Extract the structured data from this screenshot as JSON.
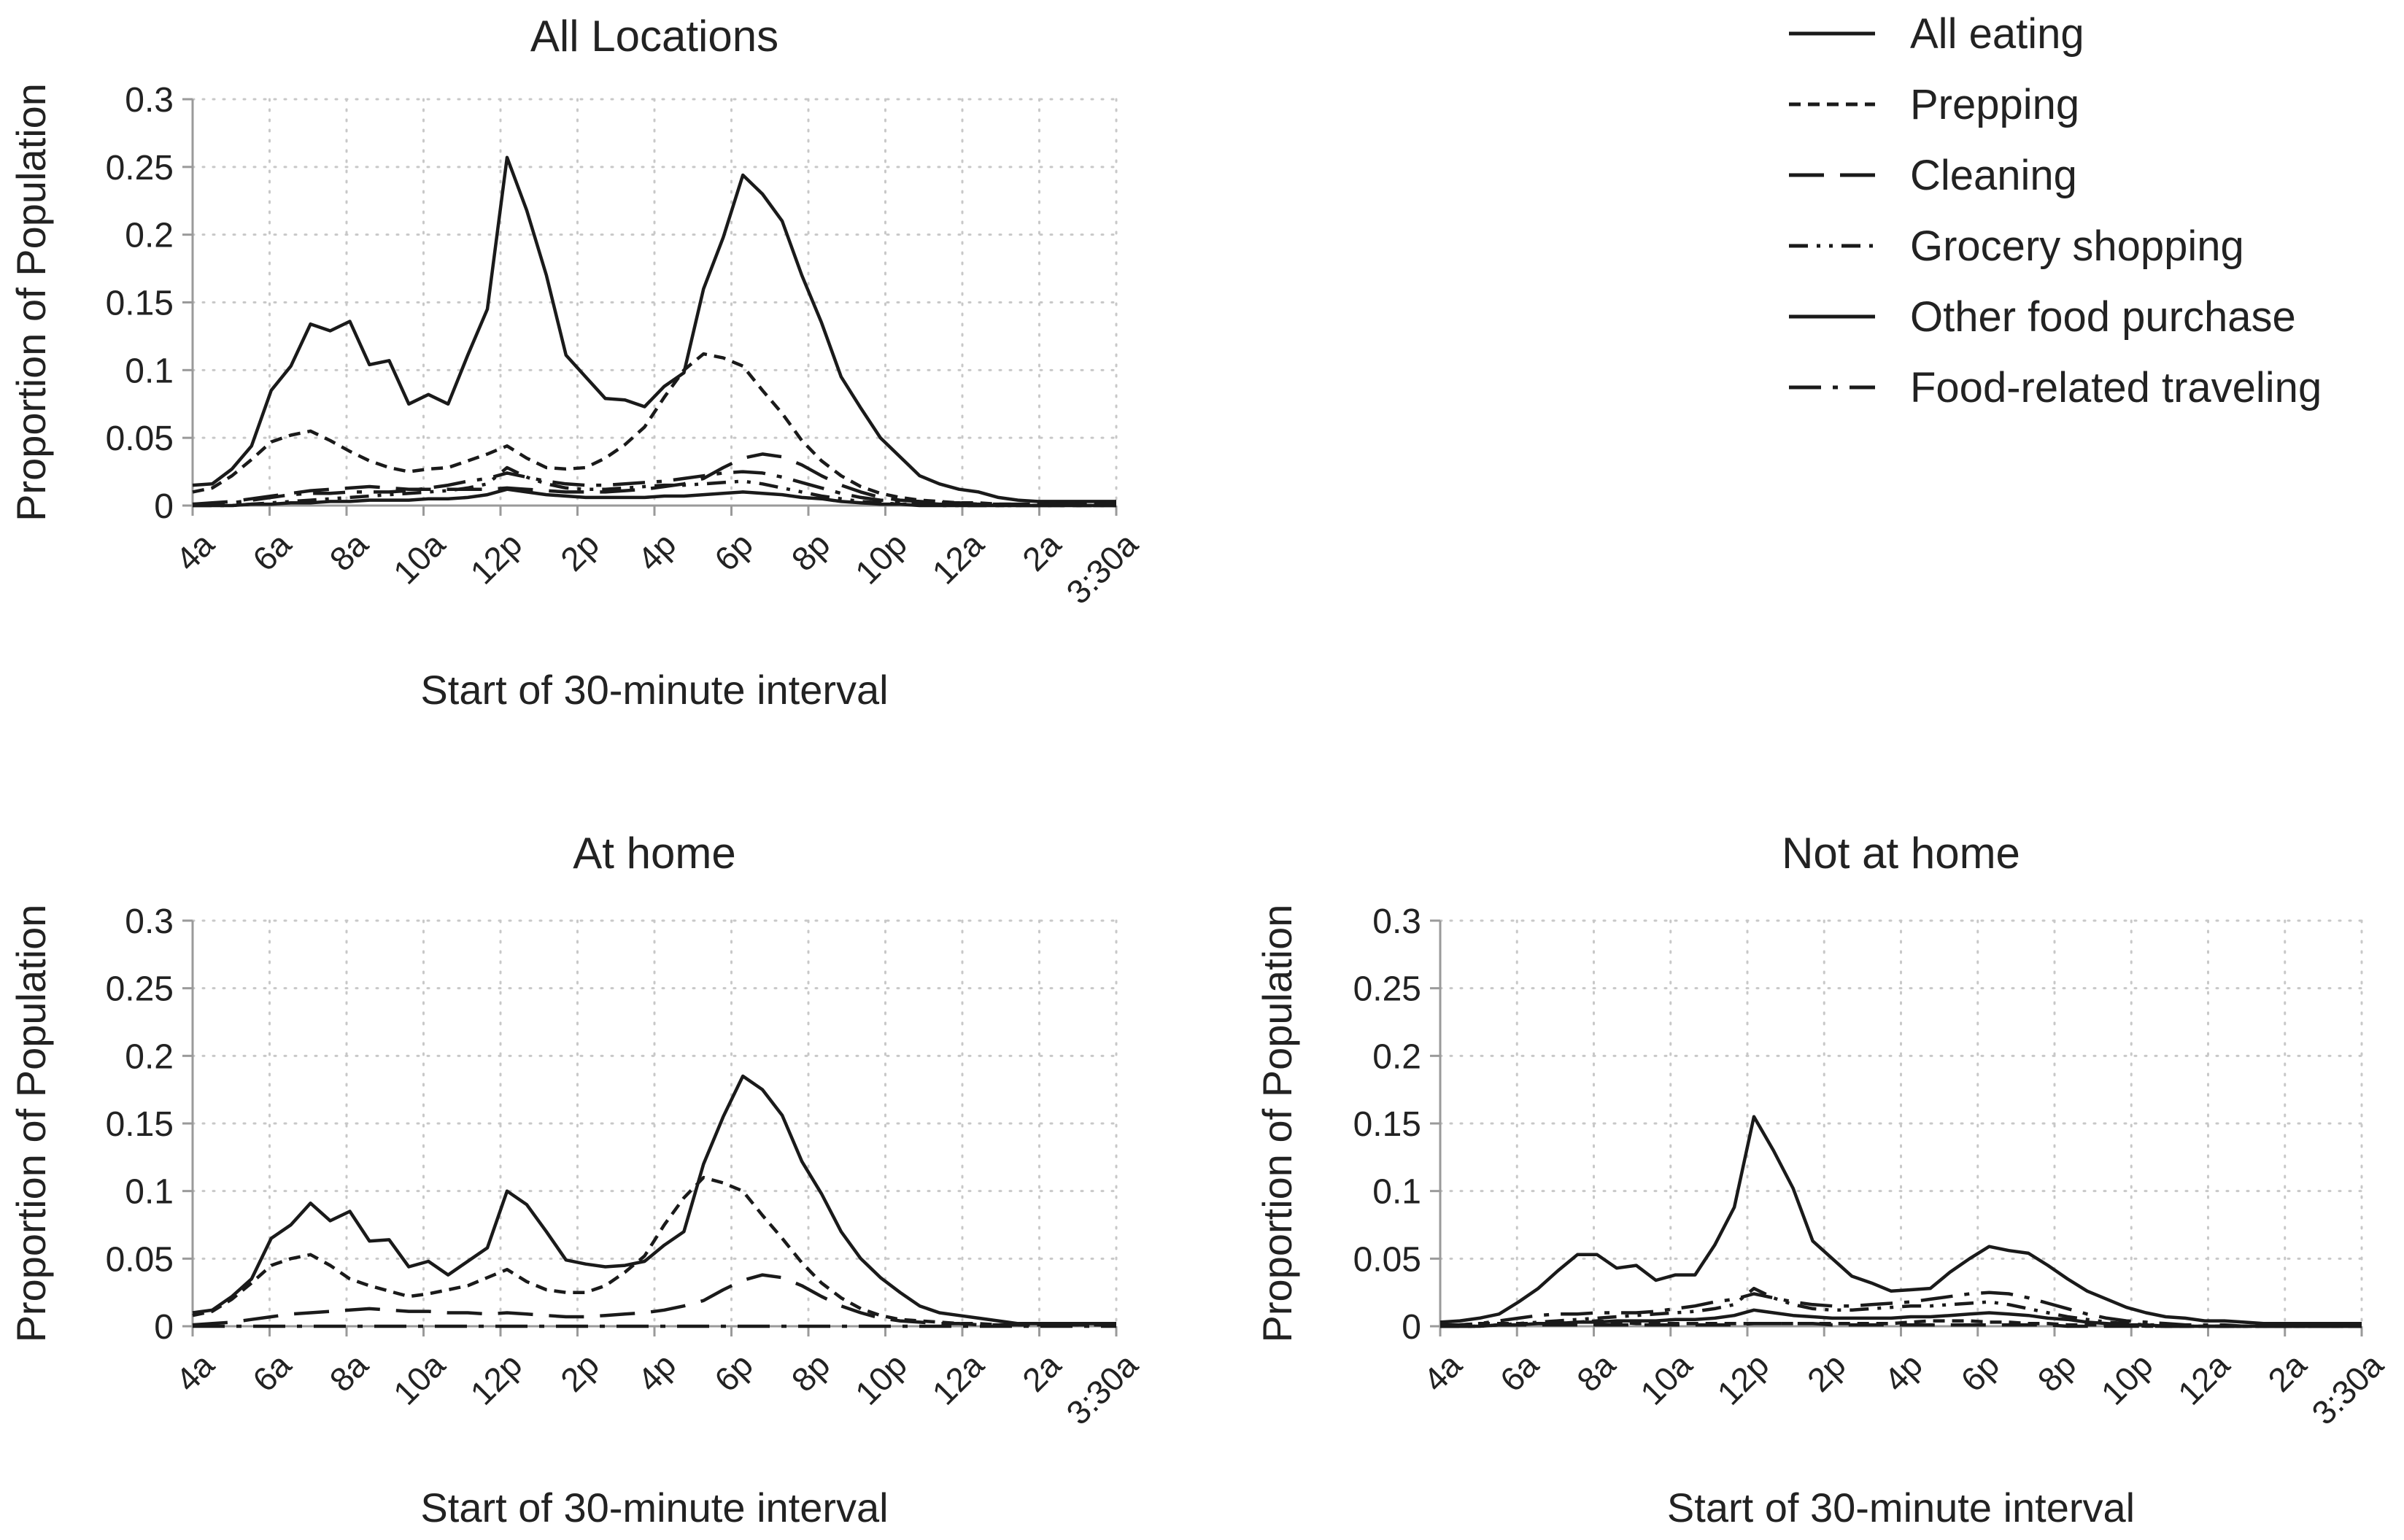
{
  "legend": {
    "placement": "top-right",
    "items": [
      {
        "label": "All eating",
        "style": "solid"
      },
      {
        "label": "Prepping",
        "style": "short-dash"
      },
      {
        "label": "Cleaning",
        "style": "long-dash"
      },
      {
        "label": "Grocery shopping",
        "style": "dash-dot-dot"
      },
      {
        "label": "Other food purchase",
        "style": "solid"
      },
      {
        "label": "Food-related traveling",
        "style": "long-dash-dot"
      }
    ]
  },
  "colors": {
    "line": "#1a1a1a",
    "grid": "#c8c8c8",
    "axis": "#9a9a9a",
    "text": "#222222"
  },
  "axes": {
    "xlabel": "Start of 30-minute interval",
    "ylabel": "Proportion of Population",
    "x_ticks": [
      "4a",
      "6a",
      "8a",
      "10a",
      "12p",
      "2p",
      "4p",
      "6p",
      "8p",
      "10p",
      "12a",
      "2a",
      "3:30a"
    ],
    "y_ticks": [
      "0",
      "0.05",
      "0.1",
      "0.15",
      "0.2",
      "0.25",
      "0.3"
    ],
    "ylim": [
      0,
      0.3
    ],
    "grid": true
  },
  "chart_data": [
    {
      "type": "line",
      "title": "All Locations",
      "xlabel": "Start of 30-minute interval",
      "ylabel": "Proportion of Population",
      "ylim": [
        0,
        0.3
      ],
      "x_ticks": [
        "4a",
        "6a",
        "8a",
        "10a",
        "12p",
        "2p",
        "4p",
        "6p",
        "8p",
        "10p",
        "12a",
        "2a",
        "3:30a"
      ],
      "y_ticks": [
        "0",
        "0.05",
        "0.1",
        "0.15",
        "0.2",
        "0.25",
        "0.3"
      ],
      "series": [
        {
          "name": "All eating",
          "style": "solid",
          "values": [
            0.015,
            0.016,
            0.027,
            0.044,
            0.085,
            0.103,
            0.134,
            0.129,
            0.136,
            0.104,
            0.107,
            0.075,
            0.082,
            0.075,
            0.111,
            0.145,
            0.257,
            0.218,
            0.17,
            0.111,
            0.095,
            0.079,
            0.078,
            0.073,
            0.088,
            0.098,
            0.16,
            0.198,
            0.244,
            0.23,
            0.21,
            0.17,
            0.135,
            0.095,
            0.072,
            0.05,
            0.036,
            0.022,
            0.016,
            0.012,
            0.01,
            0.006,
            0.004,
            0.003,
            0.003,
            0.003,
            0.003,
            0.003
          ]
        },
        {
          "name": "Prepping",
          "style": "short-dash",
          "values": [
            0.01,
            0.013,
            0.022,
            0.034,
            0.047,
            0.052,
            0.055,
            0.048,
            0.04,
            0.033,
            0.028,
            0.025,
            0.027,
            0.028,
            0.033,
            0.038,
            0.044,
            0.035,
            0.028,
            0.027,
            0.028,
            0.035,
            0.045,
            0.058,
            0.08,
            0.1,
            0.112,
            0.109,
            0.103,
            0.085,
            0.068,
            0.048,
            0.033,
            0.022,
            0.014,
            0.009,
            0.006,
            0.004,
            0.003,
            0.002,
            0.002,
            0.001,
            0.001,
            0.001,
            0.001,
            0.001,
            0.001,
            0.001
          ]
        },
        {
          "name": "Cleaning",
          "style": "long-dash",
          "values": [
            0.001,
            0.002,
            0.003,
            0.005,
            0.007,
            0.009,
            0.011,
            0.012,
            0.013,
            0.014,
            0.013,
            0.012,
            0.012,
            0.012,
            0.012,
            0.012,
            0.013,
            0.012,
            0.011,
            0.01,
            0.01,
            0.01,
            0.011,
            0.012,
            0.014,
            0.016,
            0.02,
            0.028,
            0.035,
            0.038,
            0.036,
            0.03,
            0.022,
            0.015,
            0.01,
            0.006,
            0.004,
            0.003,
            0.002,
            0.002,
            0.001,
            0.001,
            0.001,
            0.001,
            0.001,
            0.001,
            0.001,
            0.001
          ]
        },
        {
          "name": "Grocery shopping",
          "style": "dash-dot-dot",
          "values": [
            0,
            0,
            0,
            0.001,
            0.002,
            0.003,
            0.004,
            0.005,
            0.006,
            0.007,
            0.008,
            0.009,
            0.01,
            0.011,
            0.013,
            0.016,
            0.028,
            0.021,
            0.016,
            0.013,
            0.012,
            0.012,
            0.013,
            0.014,
            0.015,
            0.015,
            0.016,
            0.017,
            0.018,
            0.016,
            0.013,
            0.01,
            0.007,
            0.005,
            0.003,
            0.002,
            0.001,
            0.001,
            0,
            0,
            0,
            0,
            0,
            0,
            0,
            0,
            0,
            0
          ]
        },
        {
          "name": "Other food purchase",
          "style": "solid",
          "values": [
            0,
            0,
            0,
            0.001,
            0.001,
            0.002,
            0.002,
            0.003,
            0.003,
            0.004,
            0.004,
            0.004,
            0.005,
            0.005,
            0.006,
            0.008,
            0.012,
            0.01,
            0.008,
            0.007,
            0.006,
            0.006,
            0.006,
            0.006,
            0.007,
            0.007,
            0.008,
            0.009,
            0.01,
            0.009,
            0.008,
            0.006,
            0.005,
            0.003,
            0.002,
            0.001,
            0.001,
            0,
            0,
            0,
            0,
            0,
            0,
            0,
            0,
            0,
            0,
            0
          ]
        },
        {
          "name": "Food-related traveling",
          "style": "long-dash-dot",
          "values": [
            0.001,
            0.001,
            0.002,
            0.004,
            0.006,
            0.008,
            0.009,
            0.009,
            0.01,
            0.01,
            0.01,
            0.011,
            0.013,
            0.015,
            0.018,
            0.02,
            0.024,
            0.021,
            0.018,
            0.016,
            0.015,
            0.015,
            0.016,
            0.017,
            0.018,
            0.02,
            0.022,
            0.024,
            0.025,
            0.024,
            0.021,
            0.017,
            0.013,
            0.009,
            0.006,
            0.004,
            0.003,
            0.002,
            0.001,
            0.001,
            0.001,
            0,
            0,
            0,
            0,
            0,
            0,
            0
          ]
        }
      ]
    },
    {
      "type": "line",
      "title": "At home",
      "xlabel": "Start of 30-minute interval",
      "ylabel": "Proportion of Population",
      "ylim": [
        0,
        0.3
      ],
      "x_ticks": [
        "4a",
        "6a",
        "8a",
        "10a",
        "12p",
        "2p",
        "4p",
        "6p",
        "8p",
        "10p",
        "12a",
        "2a",
        "3:30a"
      ],
      "y_ticks": [
        "0",
        "0.05",
        "0.1",
        "0.15",
        "0.2",
        "0.25",
        "0.3"
      ],
      "series": [
        {
          "name": "All eating",
          "style": "solid",
          "values": [
            0.01,
            0.012,
            0.022,
            0.035,
            0.065,
            0.075,
            0.091,
            0.078,
            0.085,
            0.063,
            0.064,
            0.044,
            0.048,
            0.038,
            0.048,
            0.058,
            0.1,
            0.09,
            0.07,
            0.049,
            0.046,
            0.044,
            0.045,
            0.048,
            0.06,
            0.07,
            0.12,
            0.155,
            0.185,
            0.175,
            0.156,
            0.122,
            0.098,
            0.07,
            0.05,
            0.036,
            0.025,
            0.015,
            0.01,
            0.008,
            0.006,
            0.004,
            0.002,
            0.002,
            0.002,
            0.002,
            0.002,
            0.002
          ]
        },
        {
          "name": "Prepping",
          "style": "short-dash",
          "values": [
            0.008,
            0.011,
            0.02,
            0.032,
            0.045,
            0.05,
            0.053,
            0.045,
            0.035,
            0.03,
            0.026,
            0.022,
            0.024,
            0.027,
            0.03,
            0.036,
            0.042,
            0.033,
            0.027,
            0.025,
            0.025,
            0.03,
            0.04,
            0.052,
            0.075,
            0.095,
            0.11,
            0.106,
            0.1,
            0.082,
            0.065,
            0.047,
            0.032,
            0.021,
            0.013,
            0.008,
            0.005,
            0.004,
            0.003,
            0.002,
            0.002,
            0.001,
            0.001,
            0.001,
            0.001,
            0.001,
            0.001,
            0.001
          ]
        },
        {
          "name": "Cleaning",
          "style": "long-dash",
          "values": [
            0.001,
            0.002,
            0.003,
            0.005,
            0.007,
            0.009,
            0.01,
            0.011,
            0.012,
            0.013,
            0.012,
            0.011,
            0.011,
            0.01,
            0.01,
            0.009,
            0.01,
            0.009,
            0.008,
            0.007,
            0.007,
            0.008,
            0.009,
            0.01,
            0.012,
            0.015,
            0.019,
            0.027,
            0.034,
            0.038,
            0.036,
            0.03,
            0.022,
            0.015,
            0.01,
            0.006,
            0.004,
            0.003,
            0.002,
            0.002,
            0.001,
            0.001,
            0.001,
            0.001,
            0.001,
            0.001,
            0.001,
            0.001
          ]
        },
        {
          "name": "Food-related traveling",
          "style": "long-dash-dot",
          "values": [
            0,
            0,
            0,
            0,
            0,
            0,
            0,
            0,
            0,
            0,
            0,
            0,
            0,
            0,
            0,
            0,
            0,
            0,
            0,
            0,
            0,
            0,
            0,
            0,
            0,
            0,
            0,
            0,
            0,
            0,
            0,
            0,
            0,
            0,
            0,
            0,
            0,
            0,
            0,
            0,
            0,
            0,
            0,
            0,
            0,
            0,
            0,
            0
          ]
        }
      ]
    },
    {
      "type": "line",
      "title": "Not at home",
      "xlabel": "Start of 30-minute interval",
      "ylabel": "Proportion of Population",
      "ylim": [
        0,
        0.3
      ],
      "x_ticks": [
        "4a",
        "6a",
        "8a",
        "10a",
        "12p",
        "2p",
        "4p",
        "6p",
        "8p",
        "10p",
        "12a",
        "2a",
        "3:30a"
      ],
      "y_ticks": [
        "0",
        "0.05",
        "0.1",
        "0.15",
        "0.2",
        "0.25",
        "0.3"
      ],
      "series": [
        {
          "name": "All eating",
          "style": "solid",
          "values": [
            0.003,
            0.004,
            0.006,
            0.009,
            0.018,
            0.028,
            0.041,
            0.053,
            0.053,
            0.043,
            0.045,
            0.034,
            0.038,
            0.038,
            0.06,
            0.088,
            0.155,
            0.13,
            0.102,
            0.063,
            0.05,
            0.037,
            0.032,
            0.026,
            0.027,
            0.028,
            0.04,
            0.05,
            0.059,
            0.056,
            0.054,
            0.045,
            0.035,
            0.026,
            0.02,
            0.014,
            0.01,
            0.007,
            0.006,
            0.004,
            0.004,
            0.003,
            0.002,
            0.002,
            0.002,
            0.002,
            0.002,
            0.002
          ]
        },
        {
          "name": "Prepping",
          "style": "short-dash",
          "values": [
            0.001,
            0.001,
            0.002,
            0.002,
            0.002,
            0.002,
            0.002,
            0.003,
            0.004,
            0.003,
            0.002,
            0.002,
            0.002,
            0.002,
            0.002,
            0.002,
            0.002,
            0.002,
            0.002,
            0.002,
            0.002,
            0.002,
            0.002,
            0.002,
            0.003,
            0.004,
            0.004,
            0.004,
            0.003,
            0.003,
            0.002,
            0.002,
            0.001,
            0.001,
            0.001,
            0.001,
            0,
            0,
            0,
            0,
            0,
            0,
            0,
            0,
            0,
            0,
            0,
            0
          ]
        },
        {
          "name": "Cleaning",
          "style": "long-dash",
          "values": [
            0,
            0,
            0,
            0.001,
            0.001,
            0.001,
            0.001,
            0.001,
            0.001,
            0.001,
            0.001,
            0.001,
            0.001,
            0.001,
            0.001,
            0.001,
            0.002,
            0.002,
            0.002,
            0.002,
            0.001,
            0.001,
            0.001,
            0.001,
            0.001,
            0.001,
            0.001,
            0.001,
            0.001,
            0.001,
            0.001,
            0.001,
            0,
            0,
            0,
            0,
            0,
            0,
            0,
            0,
            0,
            0,
            0,
            0,
            0,
            0,
            0,
            0
          ]
        },
        {
          "name": "Grocery shopping",
          "style": "dash-dot-dot",
          "values": [
            0,
            0,
            0,
            0.001,
            0.002,
            0.003,
            0.004,
            0.005,
            0.006,
            0.007,
            0.008,
            0.009,
            0.01,
            0.011,
            0.013,
            0.016,
            0.028,
            0.021,
            0.016,
            0.013,
            0.012,
            0.012,
            0.013,
            0.014,
            0.015,
            0.015,
            0.016,
            0.017,
            0.018,
            0.016,
            0.013,
            0.01,
            0.007,
            0.005,
            0.003,
            0.002,
            0.001,
            0.001,
            0,
            0,
            0,
            0,
            0,
            0,
            0,
            0,
            0,
            0
          ]
        },
        {
          "name": "Other food purchase",
          "style": "solid",
          "values": [
            0,
            0,
            0,
            0.001,
            0.001,
            0.002,
            0.002,
            0.003,
            0.003,
            0.004,
            0.004,
            0.004,
            0.005,
            0.005,
            0.006,
            0.008,
            0.012,
            0.01,
            0.008,
            0.007,
            0.006,
            0.006,
            0.006,
            0.006,
            0.007,
            0.007,
            0.008,
            0.009,
            0.01,
            0.009,
            0.008,
            0.006,
            0.005,
            0.003,
            0.002,
            0.001,
            0.001,
            0,
            0,
            0,
            0,
            0,
            0,
            0,
            0,
            0,
            0,
            0
          ]
        },
        {
          "name": "Food-related traveling",
          "style": "long-dash-dot",
          "values": [
            0.001,
            0.001,
            0.002,
            0.004,
            0.006,
            0.008,
            0.009,
            0.009,
            0.01,
            0.01,
            0.01,
            0.011,
            0.013,
            0.015,
            0.018,
            0.02,
            0.024,
            0.021,
            0.018,
            0.016,
            0.015,
            0.015,
            0.016,
            0.017,
            0.018,
            0.02,
            0.022,
            0.024,
            0.025,
            0.024,
            0.021,
            0.017,
            0.013,
            0.009,
            0.006,
            0.004,
            0.003,
            0.002,
            0.001,
            0.001,
            0.001,
            0,
            0,
            0,
            0,
            0,
            0,
            0
          ]
        }
      ]
    }
  ]
}
